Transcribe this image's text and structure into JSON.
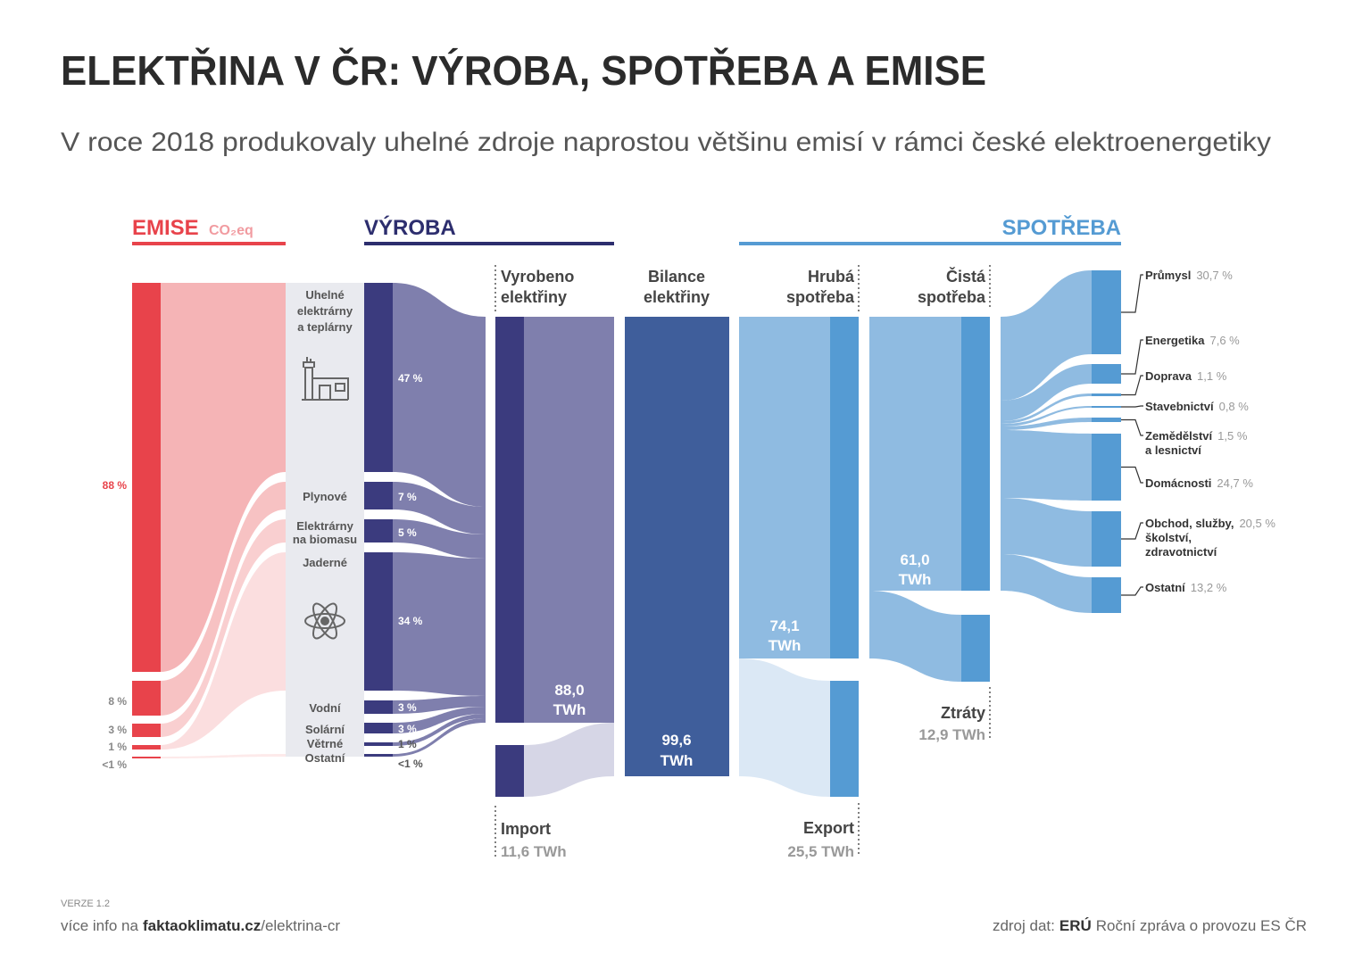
{
  "title": "ELEKTŘINA V ČR: VÝROBA, SPOTŘEBA A EMISE",
  "subtitle": "V roce 2018 produkovaly uhelné zdroje naprostou většinu emisí v rámci české elektroenergetiky",
  "sections": {
    "emissions": {
      "label": "EMISE",
      "unit": "CO₂eq"
    },
    "production": "VÝROBA",
    "consumption": "SPOTŘEBA"
  },
  "emissions": [
    "88 %",
    "8 %",
    "3 %",
    "1 %",
    "<1 %"
  ],
  "sources": [
    {
      "name": [
        "Uhelné",
        "elektrárny",
        "a teplárny"
      ],
      "share": "47 %"
    },
    {
      "name": [
        "Plynové"
      ],
      "share": "7 %"
    },
    {
      "name": [
        "Elektrárny",
        "na biomasu"
      ],
      "share": "5 %"
    },
    {
      "name": [
        "Jaderné"
      ],
      "share": "34 %"
    },
    {
      "name": [
        "Vodní"
      ],
      "share": "3 %"
    },
    {
      "name": [
        "Solární"
      ],
      "share": "3 %"
    },
    {
      "name": [
        "Větrné"
      ],
      "share": "1 %"
    },
    {
      "name": [
        "Ostatní"
      ],
      "share": "<1 %"
    }
  ],
  "columns": {
    "generated": {
      "label": [
        "Vyrobeno",
        "elektřiny"
      ],
      "value": "88,0",
      "unit": "TWh"
    },
    "import": {
      "label": "Import",
      "value": "11,6 TWh"
    },
    "balance": {
      "label": [
        "Bilance",
        "elektřiny"
      ],
      "value": "99,6",
      "unit": "TWh"
    },
    "gross": {
      "label": [
        "Hrubá",
        "spotřeba"
      ],
      "value": "74,1",
      "unit": "TWh"
    },
    "export": {
      "label": "Export",
      "value": "25,5 TWh"
    },
    "net": {
      "label": [
        "Čistá",
        "spotřeba"
      ],
      "value": "61,0",
      "unit": "TWh"
    },
    "losses": {
      "label": "Ztráty",
      "value": "12,9 TWh"
    }
  },
  "sectors": [
    {
      "name": [
        "Průmysl"
      ],
      "share": "30,7 %"
    },
    {
      "name": [
        "Energetika"
      ],
      "share": "7,6 %"
    },
    {
      "name": [
        "Doprava"
      ],
      "share": "1,1 %"
    },
    {
      "name": [
        "Stavebnictví"
      ],
      "share": "0,8 %"
    },
    {
      "name": [
        "Zemědělství",
        "a lesnictví"
      ],
      "share": "1,5 %"
    },
    {
      "name": [
        "Domácnosti"
      ],
      "share": "24,7 %"
    },
    {
      "name": [
        "Obchod, služby,",
        "školství,",
        "zdravotnictví"
      ],
      "share": "20,5 %"
    },
    {
      "name": [
        "Ostatní"
      ],
      "share": "13,2 %"
    }
  ],
  "footer": {
    "version": "VERZE 1.2",
    "more_prefix": "více info na",
    "more_site": "faktaoklimatu.cz",
    "more_path": "/elektrina-cr",
    "source_prefix": "zdroj dat:",
    "source_org": "ERÚ",
    "source_doc": "Roční zpráva o provozu ES ČR"
  }
}
